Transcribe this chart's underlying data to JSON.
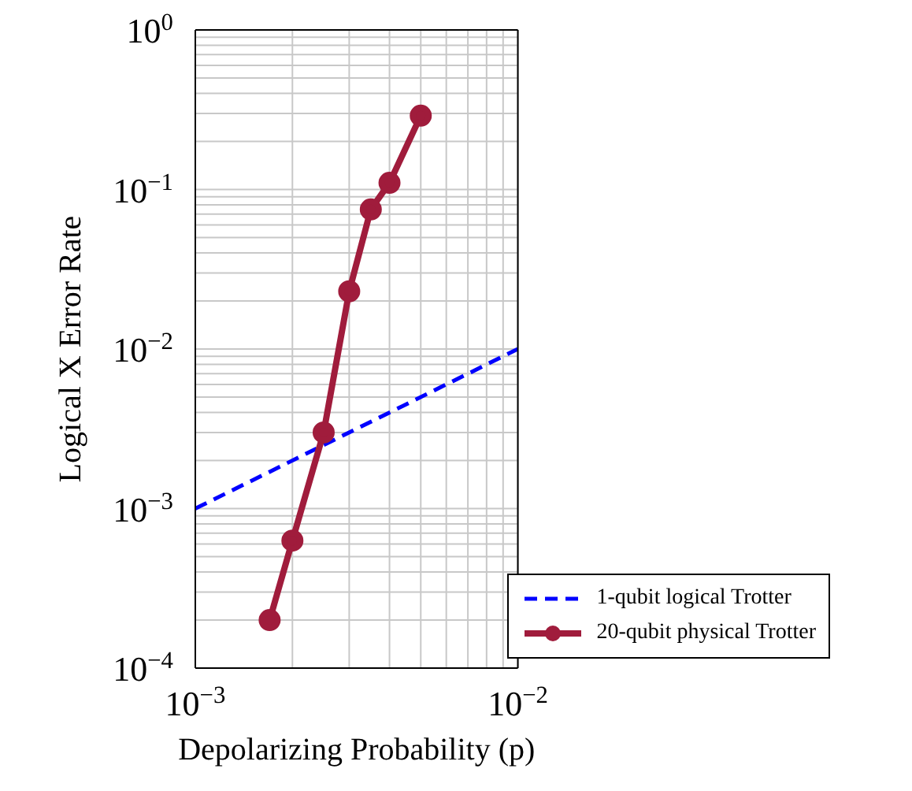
{
  "chart_data": {
    "type": "line",
    "xlabel": "Depolarizing Probability (p)",
    "ylabel": "Logical X Error Rate",
    "log": "xy",
    "grid": true,
    "legend": "bottom right",
    "xlim": [
      0.001,
      0.01
    ],
    "ylim": [
      0.0001,
      1
    ],
    "xticks": [
      {
        "value": 0.001,
        "label": "10$^{−3}$"
      },
      {
        "value": 0.002,
        "label": null
      },
      {
        "value": 0.003,
        "label": null
      },
      {
        "value": 0.004,
        "label": null
      },
      {
        "value": 0.005,
        "label": null
      },
      {
        "value": 0.006,
        "label": null
      },
      {
        "value": 0.007,
        "label": null
      },
      {
        "value": 0.008,
        "label": null
      },
      {
        "value": 0.009,
        "label": null
      },
      {
        "value": 0.01,
        "label": "10$^{−2}$"
      }
    ],
    "yticks": [
      {
        "value": 0.0001,
        "label": "10$^{−4}$"
      },
      {
        "value": 0.0002,
        "label": null
      },
      {
        "value": 0.0003,
        "label": null
      },
      {
        "value": 0.0004,
        "label": null
      },
      {
        "value": 0.0005,
        "label": null
      },
      {
        "value": 0.0006,
        "label": null
      },
      {
        "value": 0.0007,
        "label": null
      },
      {
        "value": 0.0008,
        "label": null
      },
      {
        "value": 0.0009,
        "label": null
      },
      {
        "value": 0.001,
        "label": "10$^{−3}$"
      },
      {
        "value": 0.002,
        "label": null
      },
      {
        "value": 0.003,
        "label": null
      },
      {
        "value": 0.004,
        "label": null
      },
      {
        "value": 0.005,
        "label": null
      },
      {
        "value": 0.006,
        "label": null
      },
      {
        "value": 0.007,
        "label": null
      },
      {
        "value": 0.008,
        "label": null
      },
      {
        "value": 0.009,
        "label": null
      },
      {
        "value": 0.01,
        "label": "10$^{−2}$"
      },
      {
        "value": 0.02,
        "label": null
      },
      {
        "value": 0.03,
        "label": null
      },
      {
        "value": 0.04,
        "label": null
      },
      {
        "value": 0.05,
        "label": null
      },
      {
        "value": 0.06,
        "label": null
      },
      {
        "value": 0.07,
        "label": null
      },
      {
        "value": 0.08,
        "label": null
      },
      {
        "value": 0.09,
        "label": null
      },
      {
        "value": 0.1,
        "label": "10$^{−1}$"
      },
      {
        "value": 0.2,
        "label": null
      },
      {
        "value": 0.3,
        "label": null
      },
      {
        "value": 0.4,
        "label": null
      },
      {
        "value": 0.5,
        "label": null
      },
      {
        "value": 0.6,
        "label": null
      },
      {
        "value": 0.7,
        "label": null
      },
      {
        "value": 0.8,
        "label": null
      },
      {
        "value": 0.9,
        "label": null
      },
      {
        "value": 1,
        "label": "10$^{0}$"
      }
    ],
    "series": [
      {
        "name": "1-qubit logical Trotter",
        "color": "#0000ff",
        "line_style": "dashed",
        "marker": "none",
        "x": [
          0.001,
          0.01
        ],
        "values": [
          0.001,
          0.01
        ]
      },
      {
        "name": "20-qubit physical Trotter",
        "color": "#a01c3c",
        "line_style": "solid",
        "marker": "circle",
        "x": [
          0.0017,
          0.002,
          0.0025,
          0.003,
          0.0035,
          0.004,
          0.005
        ],
        "values": [
          0.0002,
          0.00063,
          0.003,
          0.023,
          0.075,
          0.11,
          0.29
        ]
      }
    ]
  }
}
